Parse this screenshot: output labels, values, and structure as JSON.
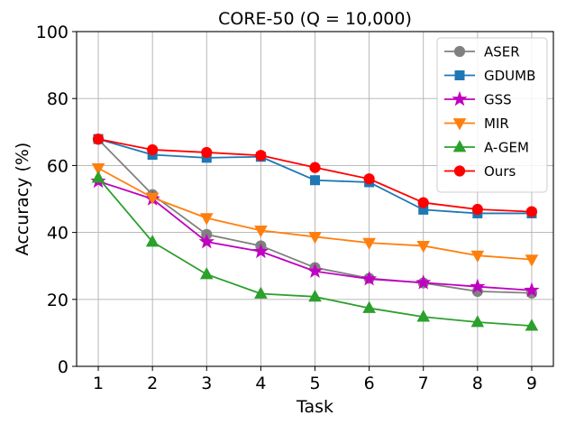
{
  "chart_data": {
    "type": "line",
    "title": "CORE-50 (Q = 10,000)",
    "xlabel": "Task",
    "ylabel": "Accuracy (%)",
    "x": [
      1,
      2,
      3,
      4,
      5,
      6,
      7,
      8,
      9
    ],
    "xticks": [
      "1",
      "2",
      "3",
      "4",
      "5",
      "6",
      "7",
      "8",
      "9"
    ],
    "yticks": [
      "0",
      "20",
      "40",
      "60",
      "80",
      "100"
    ],
    "xlim": [
      0.6,
      9.4
    ],
    "ylim": [
      0,
      100
    ],
    "grid": true,
    "legend_position": "top-right",
    "series": [
      {
        "name": "ASER",
        "color": "#808080",
        "marker": "circle",
        "values": [
          67.8,
          51.3,
          39.4,
          36.0,
          29.5,
          26.3,
          24.9,
          22.4,
          21.9
        ]
      },
      {
        "name": "GDUMB",
        "color": "#1f77b4",
        "marker": "square",
        "values": [
          67.9,
          63.2,
          62.3,
          62.6,
          55.6,
          55.0,
          46.8,
          45.7,
          45.7
        ]
      },
      {
        "name": "GSS",
        "color": "#c000c0",
        "marker": "star",
        "values": [
          55.3,
          50.0,
          37.2,
          34.3,
          28.4,
          26.1,
          25.0,
          23.8,
          22.7
        ]
      },
      {
        "name": "MIR",
        "color": "#ff7f0e",
        "marker": "triangle-down",
        "values": [
          59.2,
          50.4,
          44.3,
          40.6,
          38.7,
          36.9,
          36.0,
          33.1,
          31.9
        ]
      },
      {
        "name": "A-GEM",
        "color": "#2ca02c",
        "marker": "triangle-up",
        "values": [
          56.3,
          37.2,
          27.5,
          21.7,
          20.8,
          17.4,
          14.8,
          13.2,
          12.1
        ]
      },
      {
        "name": "Ours",
        "color": "#ff0000",
        "marker": "circle",
        "values": [
          67.9,
          64.7,
          63.9,
          63.0,
          59.4,
          56.0,
          48.9,
          46.9,
          46.2
        ]
      }
    ]
  }
}
